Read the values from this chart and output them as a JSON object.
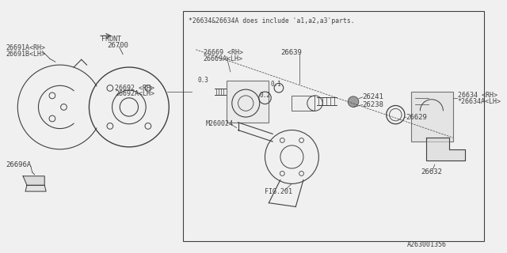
{
  "bg_color": "#f0f0f0",
  "line_color": "#404040",
  "text_color": "#404040",
  "note": "*26634&26634A does include 'a1,a2,a3'parts.",
  "part_numbers": {
    "26691A_RH": "26691A<RH>",
    "26691B_LH": "26691B<LH>",
    "26692_RH": "26692 <RH>",
    "26692A_LH": "26692A<LH>",
    "26669_RH": "26669 <RH>",
    "26669A_LH": "26669A<LH>",
    "26639": "26639",
    "26241": "26241",
    "26238": "26238",
    "26634_RH": "26634 <RH>",
    "26634A_LH": "*26634A<LH>",
    "26629": "26629",
    "26632": "26632",
    "26696A": "26696A",
    "26700": "26700",
    "M260024": "M260024",
    "FIG201": "FIG.201"
  },
  "fig_code": "A263001356"
}
